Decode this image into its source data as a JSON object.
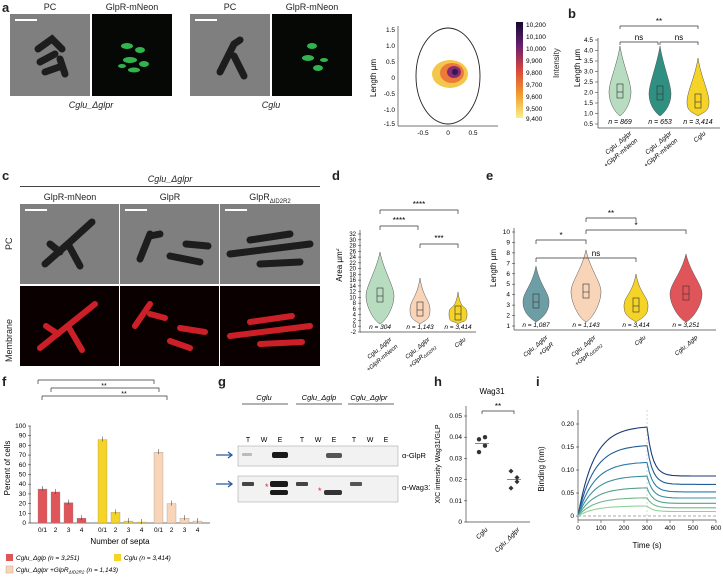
{
  "panel_letters": {
    "a": "a",
    "b": "b",
    "c": "c",
    "d": "d",
    "e": "e",
    "f": "f",
    "g": "g",
    "h": "h",
    "i": "i"
  },
  "panel_a": {
    "headers": [
      "PC",
      "GlpR-mNeon",
      "PC",
      "GlpR-mNeon"
    ],
    "strain_left": "Cglu_Δglpr",
    "strain_right": "Cglu",
    "heatmap": {
      "ylabel": "Length µm",
      "yticks": [
        "1.5",
        "1.0",
        "0.5",
        "0",
        "-0.5",
        "-1.0",
        "-1.5"
      ],
      "xticks": [
        "-0.5",
        "0",
        "0.5"
      ],
      "colorbar_label": "Intensity",
      "colorbar_ticks": [
        "10,200",
        "10,100",
        "10,000",
        "9,900",
        "9,800",
        "9,700",
        "9,600",
        "9,500",
        "9,400"
      ]
    }
  },
  "panel_b": {
    "ylabel": "Length µm",
    "yticks": [
      "0.5",
      "1.0",
      "1.5",
      "2.0",
      "2.5",
      "3.0",
      "3.5",
      "4.0",
      "4.5"
    ],
    "categories": [
      "Cglu_Δglpr +GlpR-mNeon",
      "Cglu_Δglpr +GlpR-mNeon",
      "Cglu"
    ],
    "cat_labels": [
      "Cglu_Δglpr",
      "+GlpR-mNeon",
      "Cglu_Δglpr",
      "+GlpR-mNeon",
      "Cglu"
    ],
    "n_labels": [
      "n = 869",
      "n = 653",
      "n = 3,414"
    ],
    "sig": [
      "**",
      "ns",
      "ns"
    ],
    "colors": [
      "#b7dcc0",
      "#2f8f80",
      "#f5d327"
    ]
  },
  "panel_c": {
    "title": "Cglu_Δglpr",
    "headers": [
      "GlpR-mNeon",
      "GlpR",
      "GlpR",
      "ΔID2R2"
    ],
    "row_labels": [
      "PC",
      "Membrane"
    ]
  },
  "panel_d": {
    "ylabel": "Area µm",
    "ylabel_sup": "2",
    "yticks": [
      "-2",
      "0",
      "2",
      "4",
      "6",
      "8",
      "10",
      "12",
      "14",
      "16",
      "18",
      "20",
      "22",
      "24",
      "26",
      "28",
      "30",
      "32"
    ],
    "n_labels": [
      "n = 304",
      "n = 1,143",
      "n = 3,414"
    ],
    "cat_labels": [
      "Cglu_Δglpr",
      "+GlpR-mNeon",
      "Cglu_Δglpr",
      "+GlpR",
      "ΔID2R2",
      "Cglu"
    ],
    "sig": [
      "****",
      "****",
      "***"
    ],
    "colors": [
      "#b7dcc0",
      "#f8d4b8",
      "#f5d327"
    ]
  },
  "panel_e": {
    "ylabel": "Length µm",
    "yticks": [
      "1",
      "2",
      "3",
      "4",
      "5",
      "6",
      "7",
      "8",
      "9",
      "10"
    ],
    "n_labels": [
      "n = 1,087",
      "n = 1,143",
      "n = 3,414",
      "n = 3,251"
    ],
    "cat_labels": [
      "Cglu_Δglpr",
      "+GlpR",
      "Cglu_Δglpr",
      "+GlpR",
      "ΔID2R2",
      "Cglu",
      "Cglu_Δglp"
    ],
    "sig": [
      "*",
      "**",
      "ns",
      "*"
    ],
    "colors": [
      "#6e9ea5",
      "#f8d4b8",
      "#f5d327",
      "#e0555a"
    ]
  },
  "panel_f": {
    "ylabel": "Percent of cells",
    "xlabel": "Number of septa",
    "yticks": [
      "0",
      "10",
      "20",
      "30",
      "40",
      "50",
      "60",
      "70",
      "80",
      "90",
      "100"
    ],
    "groups": [
      {
        "ticks": [
          "0/1",
          "2",
          "3",
          "4"
        ],
        "values": [
          35,
          32,
          21,
          5
        ],
        "color": "#e0555a"
      },
      {
        "ticks": [
          "0/1",
          "2",
          "3",
          "4"
        ],
        "values": [
          86,
          11,
          2,
          1
        ],
        "color": "#f5d327"
      },
      {
        "ticks": [
          "0/1",
          "2",
          "3",
          "4"
        ],
        "values": [
          73,
          20,
          5,
          2
        ],
        "color": "#f8d4b8"
      }
    ],
    "sig": [
      "***",
      "**",
      "**"
    ],
    "legend": [
      "Cglu_Δglp (n = 3,251)",
      "Cglu (n = 3,414)",
      "Cglu_Δglpr +GlpR",
      "ΔID2R2",
      "(n = 1,143)"
    ]
  },
  "panel_g": {
    "strains": [
      "Cglu",
      "Cglu_Δglp",
      "Cglu_Δglpr"
    ],
    "lanes": [
      "T",
      "W",
      "E",
      "T",
      "W",
      "E",
      "T",
      "W",
      "E"
    ],
    "blots": [
      "α-GlpR",
      "α-Wag31"
    ]
  },
  "panel_h": {
    "title": "Wag31",
    "ylabel": "XIC intensity Wag31/GLP",
    "yticks": [
      "0",
      "0.01",
      "0.02",
      "0.03",
      "0.04",
      "0.05"
    ],
    "cats": [
      "Cglu",
      "Cglu_Δglpr"
    ],
    "sig": "**",
    "values": [
      [
        0.039,
        0.036,
        0.033,
        0.04
      ],
      [
        0.024,
        0.019,
        0.016,
        0.021
      ]
    ]
  },
  "panel_i": {
    "ylabel": "Binding (nm)",
    "xlabel": "Time (s)",
    "yticks": [
      "0",
      "0.05",
      "0.10",
      "0.15",
      "0.20"
    ],
    "xticks": [
      "0",
      "100",
      "200",
      "300",
      "400",
      "500",
      "600"
    ],
    "plateaus": [
      0.196,
      0.155,
      0.118,
      0.088,
      0.062,
      0.04,
      0.022
    ],
    "colors": [
      "#1e3a78",
      "#1f5d97",
      "#2b7ba8",
      "#3d8f9d",
      "#54a18c",
      "#6fb98a",
      "#8fd39a"
    ]
  },
  "chart_data": [
    {
      "type": "bar",
      "title": "Percent of cells",
      "xlabel": "Number of septa",
      "ylabel": "Percent of cells",
      "categories": [
        "0/1",
        "2",
        "3",
        "4"
      ],
      "series": [
        {
          "name": "Cglu_Δglp (n = 3,251)",
          "values": [
            35,
            32,
            21,
            5
          ]
        },
        {
          "name": "Cglu (n = 3,414)",
          "values": [
            86,
            11,
            2,
            1
          ]
        },
        {
          "name": "Cglu_Δglpr +GlpRΔID2R2 (n = 1,143)",
          "values": [
            73,
            20,
            5,
            2
          ]
        }
      ],
      "ylim": [
        0,
        100
      ]
    },
    {
      "type": "scatter",
      "title": "Wag31",
      "ylabel": "XIC intensity Wag31/GLP",
      "categories": [
        "Cglu",
        "Cglu_Δglpr"
      ],
      "values": [
        [
          0.039,
          0.036,
          0.033,
          0.04
        ],
        [
          0.024,
          0.019,
          0.016,
          0.021
        ]
      ],
      "ylim": [
        0,
        0.05
      ]
    },
    {
      "type": "line",
      "xlabel": "Time (s)",
      "ylabel": "Binding (nm)",
      "xlim": [
        0,
        600
      ],
      "ylim": [
        0,
        0.2
      ]
    }
  ]
}
